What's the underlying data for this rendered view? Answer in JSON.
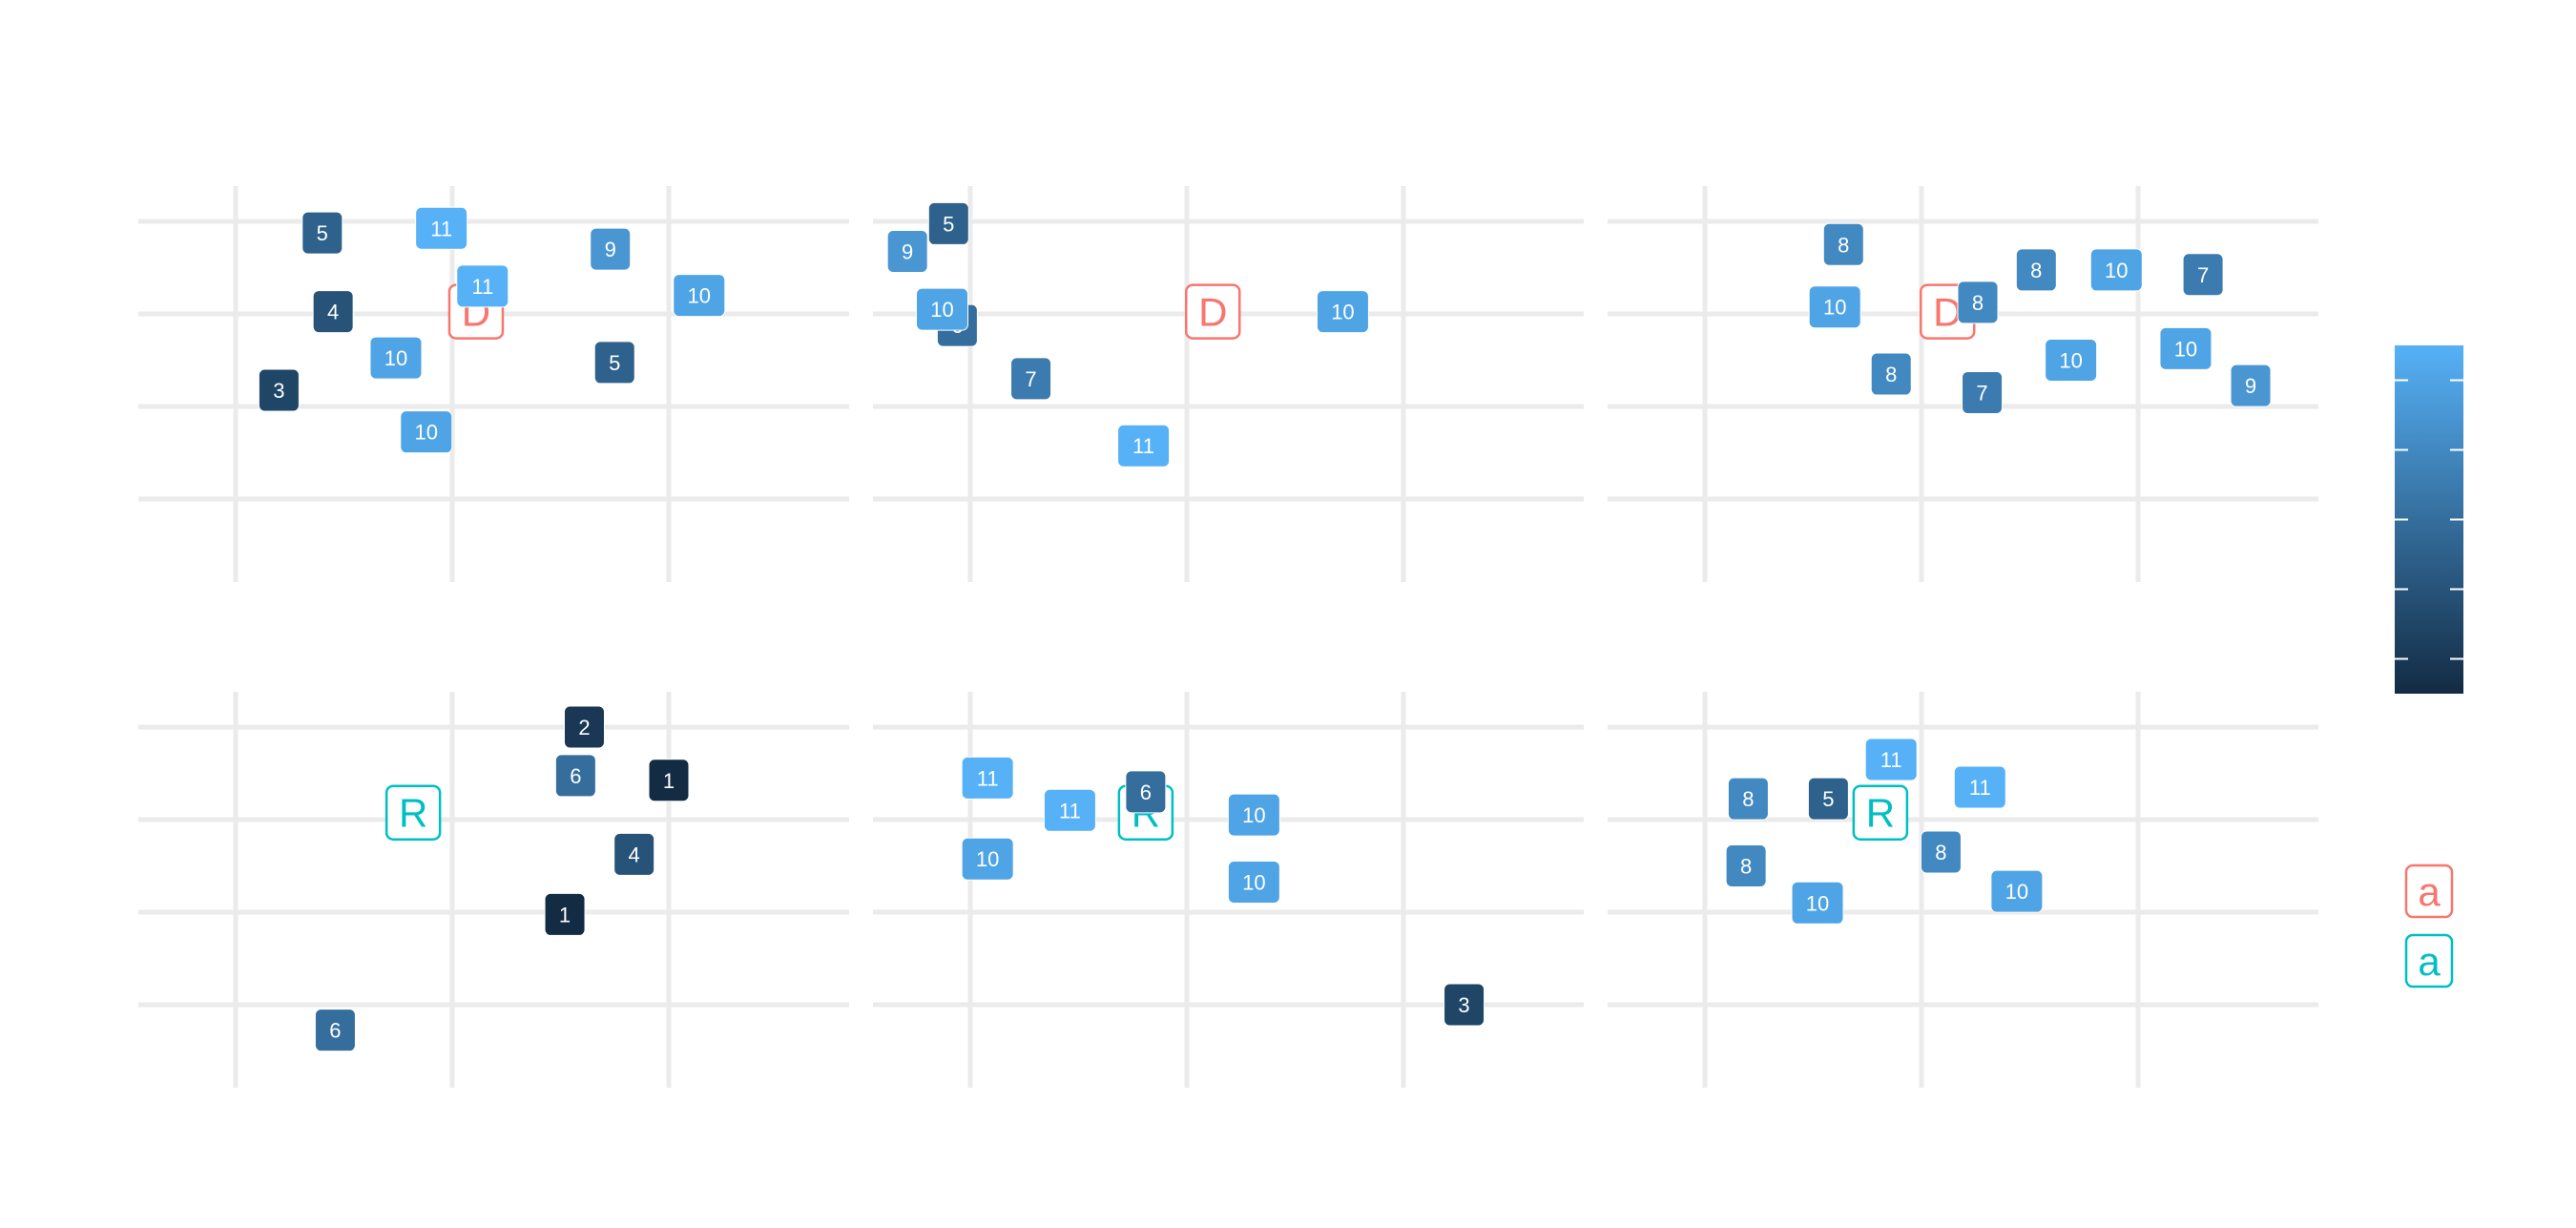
{
  "chart_data": {
    "type": "scatter",
    "title": "",
    "xlabel": "",
    "ylabel": "",
    "grid": true,
    "xlim": [
      -1.45,
      1.9
    ],
    "ylim": [
      -1.0,
      0.9
    ],
    "x_gridlines": [
      -1,
      0,
      1
    ],
    "y_gridlines": [
      -0.6,
      -0.2,
      0.2,
      0.6
    ],
    "color_scale": {
      "low": "#132B43",
      "high": "#56B1F7",
      "range": [
        1,
        11
      ],
      "ticks": [
        2,
        4,
        6,
        8,
        10
      ]
    },
    "legend_position": "right",
    "legend": {
      "colorbar": {
        "title": ""
      },
      "party_keys": [
        {
          "symbol": "a",
          "color": "#F8766D"
        },
        {
          "symbol": "a",
          "color": "#00BFC4"
        }
      ]
    },
    "panels": [
      {
        "row": 0,
        "col": 0,
        "party": {
          "label": "D",
          "x": 0.11,
          "y": 0.21,
          "color": "#F8766D"
        },
        "points": [
          {
            "x": -0.6,
            "y": 0.55,
            "v": 5
          },
          {
            "x": -0.05,
            "y": 0.57,
            "v": 11
          },
          {
            "x": 0.73,
            "y": 0.48,
            "v": 9
          },
          {
            "x": 0.14,
            "y": 0.32,
            "v": 11
          },
          {
            "x": 1.14,
            "y": 0.28,
            "v": 10
          },
          {
            "x": -0.55,
            "y": 0.21,
            "v": 4
          },
          {
            "x": -0.26,
            "y": 0.01,
            "v": 10
          },
          {
            "x": 0.75,
            "y": -0.01,
            "v": 5
          },
          {
            "x": -0.8,
            "y": -0.13,
            "v": 3
          },
          {
            "x": -0.12,
            "y": -0.31,
            "v": 10
          }
        ]
      },
      {
        "row": 0,
        "col": 1,
        "party": {
          "label": "D",
          "x": 0.12,
          "y": 0.21,
          "color": "#F8766D"
        },
        "points": [
          {
            "x": -1.1,
            "y": 0.59,
            "v": 5
          },
          {
            "x": -1.29,
            "y": 0.47,
            "v": 9
          },
          {
            "x": -1.06,
            "y": 0.15,
            "v": 6
          },
          {
            "x": -1.13,
            "y": 0.22,
            "v": 10
          },
          {
            "x": 0.72,
            "y": 0.21,
            "v": 10
          },
          {
            "x": -0.72,
            "y": -0.08,
            "v": 7
          },
          {
            "x": -0.2,
            "y": -0.37,
            "v": 11
          }
        ]
      },
      {
        "row": 0,
        "col": 2,
        "party": {
          "label": "D",
          "x": 0.12,
          "y": 0.21,
          "color": "#F8766D"
        },
        "points": [
          {
            "x": -0.36,
            "y": 0.5,
            "v": 8
          },
          {
            "x": 0.53,
            "y": 0.39,
            "v": 8
          },
          {
            "x": 0.9,
            "y": 0.39,
            "v": 10
          },
          {
            "x": 1.3,
            "y": 0.37,
            "v": 7
          },
          {
            "x": 0.26,
            "y": 0.25,
            "v": 8
          },
          {
            "x": -0.4,
            "y": 0.23,
            "v": 10
          },
          {
            "x": 0.69,
            "y": 0.0,
            "v": 10
          },
          {
            "x": 1.22,
            "y": 0.05,
            "v": 10
          },
          {
            "x": -0.14,
            "y": -0.06,
            "v": 8
          },
          {
            "x": 0.28,
            "y": -0.14,
            "v": 7
          },
          {
            "x": 1.52,
            "y": -0.11,
            "v": 9
          }
        ]
      },
      {
        "row": 1,
        "col": 0,
        "party": {
          "label": "R",
          "x": -0.18,
          "y": 0.23,
          "color": "#00BFC4"
        },
        "points": [
          {
            "x": 0.61,
            "y": 0.6,
            "v": 2
          },
          {
            "x": 0.57,
            "y": 0.39,
            "v": 6
          },
          {
            "x": 1.0,
            "y": 0.37,
            "v": 1
          },
          {
            "x": 0.84,
            "y": 0.05,
            "v": 4
          },
          {
            "x": 0.52,
            "y": -0.21,
            "v": 1
          },
          {
            "x": -0.54,
            "y": -0.71,
            "v": 6
          }
        ]
      },
      {
        "row": 1,
        "col": 1,
        "party": {
          "label": "R",
          "x": -0.19,
          "y": 0.23,
          "color": "#00BFC4"
        },
        "points": [
          {
            "x": -0.92,
            "y": 0.38,
            "v": 11
          },
          {
            "x": -0.19,
            "y": 0.32,
            "v": 6
          },
          {
            "x": -0.54,
            "y": 0.24,
            "v": 11
          },
          {
            "x": 0.31,
            "y": 0.22,
            "v": 10
          },
          {
            "x": -0.92,
            "y": 0.03,
            "v": 10
          },
          {
            "x": 0.31,
            "y": -0.07,
            "v": 10
          },
          {
            "x": 1.28,
            "y": -0.6,
            "v": 3
          }
        ]
      },
      {
        "row": 1,
        "col": 2,
        "party": {
          "label": "R",
          "x": -0.19,
          "y": 0.23,
          "color": "#00BFC4"
        },
        "points": [
          {
            "x": -0.14,
            "y": 0.46,
            "v": 11
          },
          {
            "x": 0.27,
            "y": 0.34,
            "v": 11
          },
          {
            "x": -0.8,
            "y": 0.29,
            "v": 8
          },
          {
            "x": -0.43,
            "y": 0.29,
            "v": 5
          },
          {
            "x": 0.09,
            "y": 0.06,
            "v": 8
          },
          {
            "x": -0.81,
            "y": 0.0,
            "v": 8
          },
          {
            "x": 0.44,
            "y": -0.11,
            "v": 10
          },
          {
            "x": -0.48,
            "y": -0.16,
            "v": 10
          }
        ]
      }
    ]
  }
}
